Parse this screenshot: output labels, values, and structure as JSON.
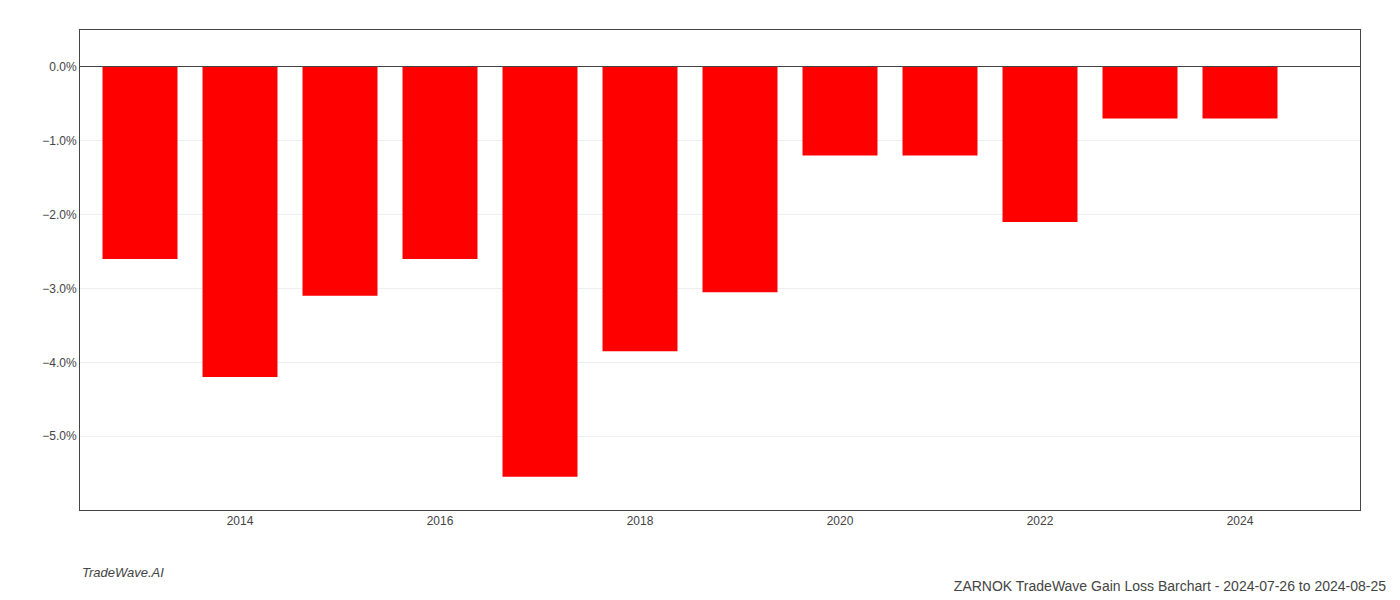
{
  "chart_data": {
    "type": "bar",
    "title": "ZARNOK TradeWave Gain Loss Barchart - 2024-07-26 to 2024-08-25",
    "annotations": [
      "TradeWave.AI"
    ],
    "x": [
      2013,
      2014,
      2015,
      2016,
      2017,
      2018,
      2019,
      2020,
      2021,
      2022,
      2023,
      2024
    ],
    "values": [
      -2.6,
      -4.2,
      -3.1,
      -2.6,
      -5.55,
      -3.85,
      -3.05,
      -1.2,
      -1.2,
      -2.1,
      -0.7,
      -0.7
    ],
    "color": "#ff0000",
    "xlim": [
      2012.4,
      2025.2
    ],
    "xticks": [
      2014,
      2016,
      2018,
      2020,
      2022,
      2024
    ],
    "ylim": [
      -6.0,
      0.5
    ],
    "yticks": [
      {
        "value": 0.0,
        "label": "0.0%"
      },
      {
        "value": -1.0,
        "label": "−1.0%"
      },
      {
        "value": -2.0,
        "label": "−2.0%"
      },
      {
        "value": -3.0,
        "label": "−3.0%"
      },
      {
        "value": -4.0,
        "label": "−4.0%"
      },
      {
        "value": -5.0,
        "label": "−5.0%"
      }
    ],
    "grid": "y"
  }
}
